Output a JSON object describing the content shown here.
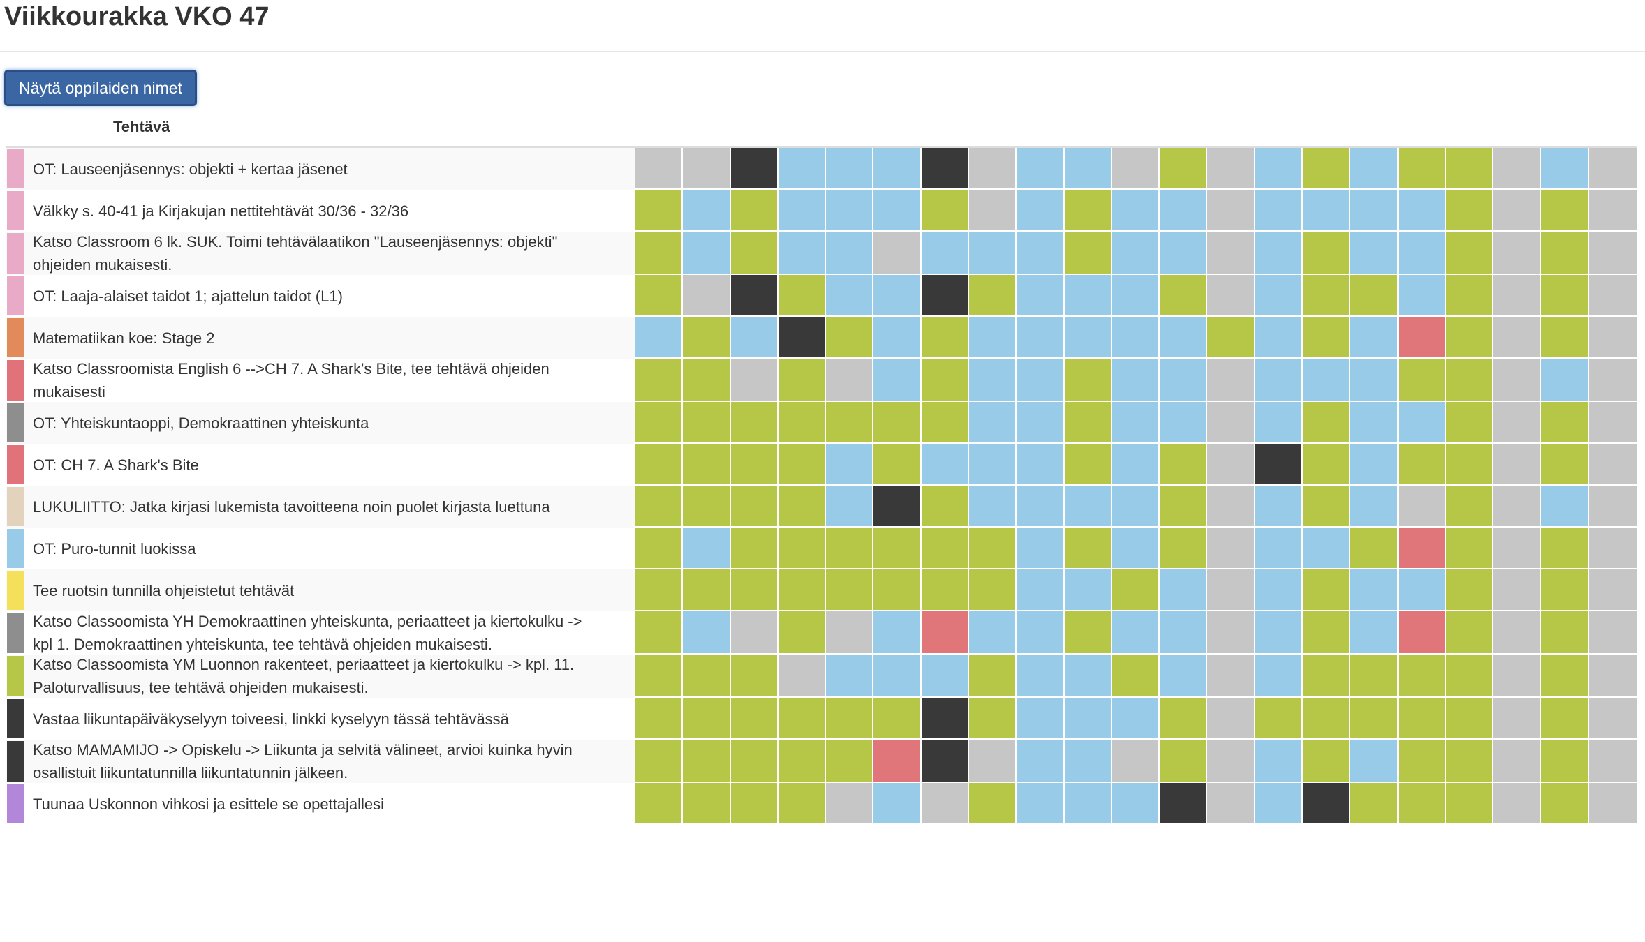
{
  "page": {
    "title": "Viikkourakka VKO 47",
    "show_names_button": "Näytä oppilaiden nimet",
    "task_column_header": "Tehtävä"
  },
  "status_colors": {
    "G": "#b6c748",
    "B": "#98cbe8",
    "S": "#c6c6c6",
    "K": "#393939",
    "R": "#e1767a"
  },
  "tasks": [
    {
      "label": "OT: Lauseenjäsennys: objekti + kertaa jäsenet",
      "color": "#e8aac6",
      "cells": "SSKBBBKSBBSGSBGBGGSBS"
    },
    {
      "label": "Välkky s. 40-41 ja Kirjakujan nettitehtävät 30/36 - 32/36",
      "color": "#e8aac6",
      "cells": "GBGBBBGSBGBBSBBBBGSGS"
    },
    {
      "label": "Katso Classroom 6 lk. SUK. Toimi tehtävälaatikon \"Lauseenjäsennys: objekti\"\nohjeiden mukaisesti.",
      "color": "#e8aac6",
      "cells": "GBGBBSBBBGBBSBGBBGSGS"
    },
    {
      "label": "OT: Laaja-alaiset taidot 1; ajattelun taidot (L1)",
      "color": "#e8aac6",
      "cells": "GSKGBBKGBBBGSBGGBGSGS"
    },
    {
      "label": "Matematiikan koe: Stage 2",
      "color": "#e38a5a",
      "cells": "BGBKGBGBBBBBGBGBRGSGS"
    },
    {
      "label": "Katso Classroomista English 6 -->CH 7. A Shark's Bite, tee tehtävä ohjeiden\nmukaisesti",
      "color": "#e1727a",
      "cells": "GGSGSBGBBGBBSBBBGGSBS"
    },
    {
      "label": "OT: Yhteiskuntaoppi, Demokraattinen yhteiskunta",
      "color": "#8e8e8e",
      "cells": "GGGGGGGBBGBBSBGBBGSGS"
    },
    {
      "label": "OT: CH 7. A Shark's Bite",
      "color": "#e1727a",
      "cells": "GGGGBGBBBGBGSKGBGGSGS"
    },
    {
      "label": "LUKULIITTO: Jatka kirjasi lukemista tavoitteena noin puolet kirjasta luettuna",
      "color": "#e3d2bc",
      "cells": "GGGGBKGBBBBGSBGBSGSBS"
    },
    {
      "label": "OT: Puro-tunnit luokissa",
      "color": "#98cbe8",
      "cells": "GBGGGGGGBGBGSBBGRGSGS"
    },
    {
      "label": "Tee ruotsin tunnilla ohjeistetut tehtävät",
      "color": "#f4e05a",
      "cells": "GGGGGGGGBBGBSBGBBGSGS"
    },
    {
      "label": "Katso Classoomista YH Demokraattinen yhteiskunta, periaatteet ja kiertokulku ->\nkpl 1. Demokraattinen yhteiskunta, tee tehtävä ohjeiden mukaisesti.",
      "color": "#8e8e8e",
      "cells": "GBSGSBRBBGBBSBGBRGSGS"
    },
    {
      "label": "Katso Classoomista YM Luonnon rakenteet, periaatteet ja kiertokulku -> kpl. 11.\nPaloturvallisuus, tee tehtävä ohjeiden mukaisesti.",
      "color": "#b6c748",
      "cells": "GGGSBBBGBBGBSBGGGGSGS"
    },
    {
      "label": "Vastaa liikuntapäiväkyselyyn toiveesi, linkki kyselyyn tässä tehtävässä",
      "color": "#393939",
      "cells": "GGGGGGKGBBBGSGGGGGSGS"
    },
    {
      "label": "Katso MAMAMIJO -> Opiskelu -> Liikunta ja selvitä välineet, arvioi kuinka hyvin\nosallistuit liikuntatunnilla liikuntatunnin jälkeen.",
      "color": "#393939",
      "cells": "GGGGGRKSBBSGSBGBGGSGS"
    },
    {
      "label": "Tuunaa Uskonnon vihkosi ja esittele se opettajallesi",
      "color": "#b287d9",
      "cells": "GGGGSBSGBBBKSBKGGGSGS"
    }
  ]
}
